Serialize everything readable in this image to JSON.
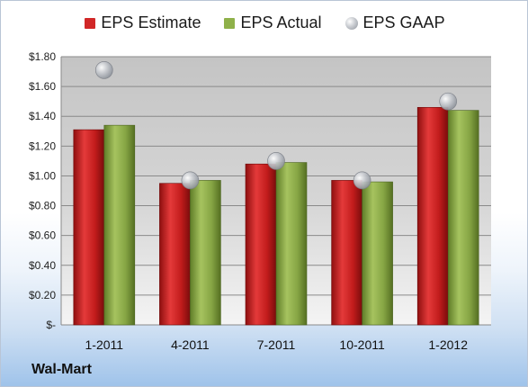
{
  "chart_data": {
    "type": "bar",
    "categories": [
      "1-2011",
      "4-2011",
      "7-2011",
      "10-2011",
      "1-2012"
    ],
    "series": [
      {
        "name": "EPS Estimate",
        "kind": "bar",
        "color": "#d12727",
        "values": [
          1.31,
          0.95,
          1.08,
          0.97,
          1.46
        ]
      },
      {
        "name": "EPS Actual",
        "kind": "bar",
        "color": "#8fb14a",
        "values": [
          1.34,
          0.97,
          1.09,
          0.96,
          1.44
        ]
      },
      {
        "name": "EPS GAAP",
        "kind": "scatter",
        "color": "#b8bcc2",
        "values": [
          1.71,
          0.97,
          1.1,
          0.97,
          1.5
        ]
      }
    ],
    "ylim": [
      0,
      1.8
    ],
    "yticks": [
      {
        "value": 0,
        "label": "$-"
      },
      {
        "value": 0.2,
        "label": "$0.20"
      },
      {
        "value": 0.4,
        "label": "$0.40"
      },
      {
        "value": 0.6,
        "label": "$0.60"
      },
      {
        "value": 0.8,
        "label": "$0.80"
      },
      {
        "value": 1.0,
        "label": "$1.00"
      },
      {
        "value": 1.2,
        "label": "$1.20"
      },
      {
        "value": 1.4,
        "label": "$1.40"
      },
      {
        "value": 1.6,
        "label": "$1.60"
      },
      {
        "value": 1.8,
        "label": "$1.80"
      }
    ],
    "grid": true,
    "legend_position": "top"
  },
  "company_label": "Wal-Mart"
}
